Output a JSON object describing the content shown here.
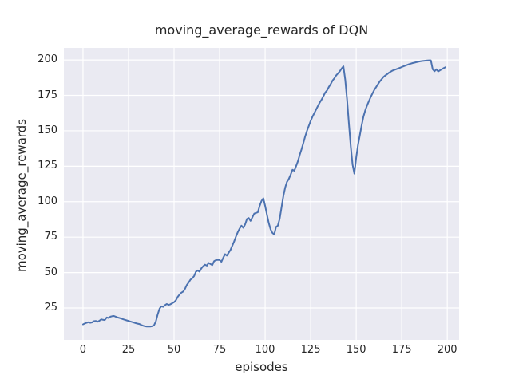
{
  "title": "moving_average_rewards of DQN",
  "xlabel": "episodes",
  "ylabel": "moving_average_rewards",
  "colors": {
    "line": "#4c72b0",
    "plot_background": "#eaeaf2",
    "grid": "#ffffff",
    "text": "#262626",
    "figure_background": "#ffffff"
  },
  "chart_data": {
    "type": "line",
    "title": "moving_average_rewards of DQN",
    "xlabel": "episodes",
    "ylabel": "moving_average_rewards",
    "x_ticks": [
      0,
      25,
      50,
      75,
      100,
      125,
      150,
      175,
      200
    ],
    "y_ticks": [
      25,
      50,
      75,
      100,
      125,
      150,
      175,
      200
    ],
    "xlim": [
      -10.5,
      206.5
    ],
    "ylim": [
      2.5,
      208.5
    ],
    "grid": true,
    "legend_position": "none",
    "series": [
      {
        "name": "moving_average_rewards",
        "color": "#4c72b0",
        "points": [
          [
            0,
            13.5
          ],
          [
            1,
            14.1
          ],
          [
            2,
            14.6
          ],
          [
            3,
            15.0
          ],
          [
            4,
            14.6
          ],
          [
            5,
            14.9
          ],
          [
            6,
            15.7
          ],
          [
            7,
            15.9
          ],
          [
            8,
            15.3
          ],
          [
            9,
            16.0
          ],
          [
            10,
            17.0
          ],
          [
            11,
            16.7
          ],
          [
            12,
            16.5
          ],
          [
            13,
            18.3
          ],
          [
            14,
            18.0
          ],
          [
            15,
            18.9
          ],
          [
            16,
            19.2
          ],
          [
            17,
            19.4
          ],
          [
            18,
            18.9
          ],
          [
            19,
            18.3
          ],
          [
            20,
            18.0
          ],
          [
            21,
            17.6
          ],
          [
            22,
            17.1
          ],
          [
            23,
            16.7
          ],
          [
            24,
            16.3
          ],
          [
            25,
            15.9
          ],
          [
            26,
            15.5
          ],
          [
            27,
            15.1
          ],
          [
            28,
            14.7
          ],
          [
            29,
            14.3
          ],
          [
            30,
            14.0
          ],
          [
            31,
            13.7
          ],
          [
            32,
            13.0
          ],
          [
            33,
            12.5
          ],
          [
            34,
            12.1
          ],
          [
            35,
            11.9
          ],
          [
            36,
            11.9
          ],
          [
            37,
            11.9
          ],
          [
            38,
            12.2
          ],
          [
            39,
            12.8
          ],
          [
            40,
            15.5
          ],
          [
            41,
            20.5
          ],
          [
            42,
            24.5
          ],
          [
            43,
            26.2
          ],
          [
            44,
            25.8
          ],
          [
            45,
            27.0
          ],
          [
            46,
            27.8
          ],
          [
            47,
            27.2
          ],
          [
            48,
            27.6
          ],
          [
            49,
            28.4
          ],
          [
            50,
            29.1
          ],
          [
            51,
            30.5
          ],
          [
            52,
            32.9
          ],
          [
            53,
            34.5
          ],
          [
            54,
            35.8
          ],
          [
            55,
            36.6
          ],
          [
            56,
            38.5
          ],
          [
            57,
            41.3
          ],
          [
            58,
            43.0
          ],
          [
            59,
            45.0
          ],
          [
            60,
            46.0
          ],
          [
            61,
            47.5
          ],
          [
            62,
            50.6
          ],
          [
            63,
            51.5
          ],
          [
            64,
            50.6
          ],
          [
            65,
            53.0
          ],
          [
            66,
            54.5
          ],
          [
            67,
            55.6
          ],
          [
            68,
            54.9
          ],
          [
            69,
            56.8
          ],
          [
            70,
            56.0
          ],
          [
            71,
            55.3
          ],
          [
            72,
            58.1
          ],
          [
            73,
            58.8
          ],
          [
            74,
            59.0
          ],
          [
            75,
            58.9
          ],
          [
            76,
            57.6
          ],
          [
            77,
            60.5
          ],
          [
            78,
            63.0
          ],
          [
            79,
            62.0
          ],
          [
            80,
            64.0
          ],
          [
            81,
            66.0
          ],
          [
            82,
            69.0
          ],
          [
            83,
            72.0
          ],
          [
            84,
            75.5
          ],
          [
            85,
            78.5
          ],
          [
            86,
            81.0
          ],
          [
            87,
            83.1
          ],
          [
            88,
            81.6
          ],
          [
            89,
            84.0
          ],
          [
            90,
            87.8
          ],
          [
            91,
            88.5
          ],
          [
            92,
            86.5
          ],
          [
            93,
            89.0
          ],
          [
            94,
            91.6
          ],
          [
            95,
            92.1
          ],
          [
            96,
            92.5
          ],
          [
            97,
            97.0
          ],
          [
            98,
            100.5
          ],
          [
            99,
            102.4
          ],
          [
            100,
            97.0
          ],
          [
            101,
            91.0
          ],
          [
            102,
            85.0
          ],
          [
            103,
            80.5
          ],
          [
            104,
            78.0
          ],
          [
            105,
            76.9
          ],
          [
            106,
            82.2
          ],
          [
            107,
            83.1
          ],
          [
            108,
            88.0
          ],
          [
            109,
            96.0
          ],
          [
            110,
            104.0
          ],
          [
            111,
            110.0
          ],
          [
            112,
            114.0
          ],
          [
            113,
            116.0
          ],
          [
            114,
            119.0
          ],
          [
            115,
            122.5
          ],
          [
            116,
            121.8
          ],
          [
            117,
            125.0
          ],
          [
            118,
            128.5
          ],
          [
            119,
            133.0
          ],
          [
            120,
            137.0
          ],
          [
            121,
            141.5
          ],
          [
            122,
            146.0
          ],
          [
            123,
            150.0
          ],
          [
            124,
            153.5
          ],
          [
            125,
            157.0
          ],
          [
            126,
            160.0
          ],
          [
            127,
            162.5
          ],
          [
            128,
            165.0
          ],
          [
            129,
            167.5
          ],
          [
            130,
            170.0
          ],
          [
            131,
            172.0
          ],
          [
            132,
            174.5
          ],
          [
            133,
            177.0
          ],
          [
            134,
            178.5
          ],
          [
            135,
            181.0
          ],
          [
            136,
            183.0
          ],
          [
            137,
            185.5
          ],
          [
            138,
            187.0
          ],
          [
            139,
            189.0
          ],
          [
            140,
            190.5
          ],
          [
            141,
            192.0
          ],
          [
            142,
            194.0
          ],
          [
            143,
            195.5
          ],
          [
            144,
            186.0
          ],
          [
            145,
            172.0
          ],
          [
            146,
            155.0
          ],
          [
            147,
            139.0
          ],
          [
            148,
            126.0
          ],
          [
            149,
            119.8
          ],
          [
            150,
            131.0
          ],
          [
            151,
            140.0
          ],
          [
            152,
            147.0
          ],
          [
            153,
            154.0
          ],
          [
            154,
            160.0
          ],
          [
            155,
            164.5
          ],
          [
            156,
            168.0
          ],
          [
            157,
            171.0
          ],
          [
            158,
            174.0
          ],
          [
            159,
            176.5
          ],
          [
            160,
            179.0
          ],
          [
            161,
            181.0
          ],
          [
            162,
            183.0
          ],
          [
            163,
            185.0
          ],
          [
            164,
            186.5
          ],
          [
            165,
            188.0
          ],
          [
            166,
            189.0
          ],
          [
            167,
            190.0
          ],
          [
            168,
            191.0
          ],
          [
            169,
            191.8
          ],
          [
            170,
            192.5
          ],
          [
            171,
            193.0
          ],
          [
            172,
            193.5
          ],
          [
            173,
            194.0
          ],
          [
            174,
            194.5
          ],
          [
            175,
            195.0
          ],
          [
            176,
            195.5
          ],
          [
            177,
            196.0
          ],
          [
            178,
            196.5
          ],
          [
            179,
            197.0
          ],
          [
            180,
            197.4
          ],
          [
            181,
            197.8
          ],
          [
            182,
            198.1
          ],
          [
            183,
            198.4
          ],
          [
            184,
            198.7
          ],
          [
            185,
            199.0
          ],
          [
            186,
            199.2
          ],
          [
            187,
            199.4
          ],
          [
            188,
            199.5
          ],
          [
            189,
            199.6
          ],
          [
            190,
            199.7
          ],
          [
            191,
            199.7
          ],
          [
            192,
            193.5
          ],
          [
            193,
            192.0
          ],
          [
            194,
            193.4
          ],
          [
            195,
            191.9
          ],
          [
            196,
            192.7
          ],
          [
            197,
            193.4
          ],
          [
            198,
            194.2
          ],
          [
            199,
            194.9
          ]
        ]
      }
    ]
  }
}
